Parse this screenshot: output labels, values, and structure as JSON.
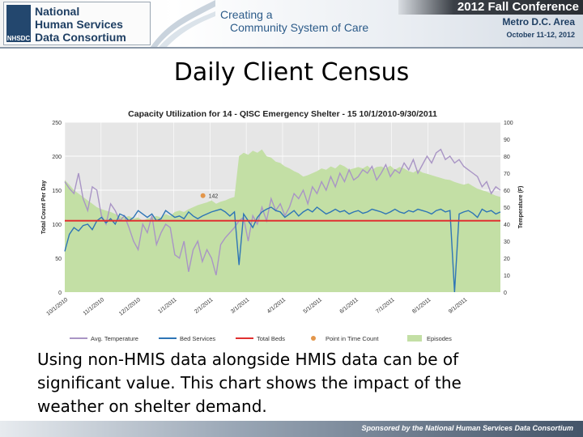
{
  "header": {
    "logo_lines": [
      "National",
      "Human Services",
      "Data Consortium"
    ],
    "logo_mark": "NHSDC",
    "tagline_lines": [
      "Creating a",
      "Community System of Care"
    ],
    "conference": "2012 Fall Conference",
    "location": "Metro D.C. Area",
    "dates": "October 11-12, 2012"
  },
  "slide_title": "Daily Client Census",
  "caption": "Using non-HMIS data alongside HMIS data can be of significant value.  This chart shows the impact of the weather on shelter demand.",
  "footer": "Sponsored by the National Human Services Data Consortium",
  "chart_data": {
    "type": "line",
    "title": "Capacity Utilization for 14 - QISC Emergency Shelter - 15 10/1/2010-9/30/2011",
    "ylabel": "Total Count Per Day",
    "y2label": "Temperature (F)",
    "ylim": [
      0,
      250
    ],
    "y2lim": [
      0,
      100
    ],
    "yticks": [
      "250",
      "200",
      "150",
      "100",
      "50",
      "0"
    ],
    "y2ticks": [
      "100",
      "90",
      "80",
      "70",
      "60",
      "50",
      "40",
      "30",
      "20",
      "10",
      "0"
    ],
    "xticks": [
      "10/1/2010",
      "11/1/2010",
      "12/1/2010",
      "1/1/2011",
      "2/1/2011",
      "3/1/2011",
      "4/1/2011",
      "5/1/2011",
      "6/1/2011",
      "7/1/2011",
      "8/1/2011",
      "9/1/2011"
    ],
    "grid": true,
    "legend_position": "bottom",
    "series": [
      {
        "name": "Avg. Temperature",
        "color": "#a995c5",
        "axis": "right",
        "values": [
          65,
          61,
          58,
          70,
          55,
          48,
          62,
          60,
          45,
          40,
          52,
          48,
          42,
          45,
          38,
          30,
          25,
          40,
          35,
          45,
          28,
          35,
          40,
          38,
          22,
          20,
          30,
          12,
          25,
          30,
          18,
          25,
          20,
          10,
          28,
          32,
          35,
          38,
          42,
          44,
          30,
          45,
          40,
          50,
          42,
          55,
          48,
          52,
          45,
          50,
          58,
          55,
          60,
          52,
          62,
          58,
          65,
          60,
          68,
          62,
          70,
          65,
          72,
          66,
          68,
          72,
          70,
          74,
          66,
          70,
          75,
          68,
          72,
          70,
          76,
          72,
          78,
          70,
          75,
          80,
          76,
          82,
          84,
          78,
          80,
          76,
          78,
          74,
          72,
          70,
          68,
          62,
          65,
          58,
          62,
          60
        ]
      },
      {
        "name": "Bed Services",
        "color": "#2e75b6",
        "axis": "left",
        "values": [
          60,
          85,
          95,
          90,
          98,
          100,
          92,
          105,
          110,
          102,
          108,
          100,
          115,
          112,
          105,
          110,
          120,
          115,
          110,
          115,
          105,
          108,
          120,
          115,
          110,
          112,
          108,
          118,
          112,
          108,
          112,
          115,
          118,
          120,
          122,
          118,
          112,
          118,
          40,
          115,
          105,
          95,
          110,
          118,
          122,
          125,
          120,
          118,
          110,
          115,
          120,
          112,
          118,
          122,
          118,
          125,
          120,
          115,
          118,
          122,
          118,
          120,
          115,
          118,
          120,
          116,
          118,
          122,
          120,
          118,
          115,
          118,
          122,
          118,
          116,
          120,
          118,
          122,
          120,
          118,
          115,
          120,
          122,
          118,
          120,
          0,
          115,
          118,
          120,
          116,
          110,
          122,
          118,
          120,
          115,
          118
        ]
      },
      {
        "name": "Total Beds",
        "color": "#e03030",
        "axis": "left",
        "values": [
          105,
          105
        ]
      },
      {
        "name": "Point in Time Count",
        "color": "#e3964a",
        "axis": "left",
        "point": {
          "x": "1/26/2011",
          "y": 142,
          "label": "142"
        }
      },
      {
        "name": "Episodes",
        "color": "#c3dfa5",
        "axis": "left",
        "kind": "area",
        "values": [
          165,
          158,
          150,
          145,
          140,
          135,
          130,
          125,
          122,
          120,
          118,
          115,
          112,
          110,
          112,
          108,
          110,
          105,
          108,
          110,
          112,
          110,
          115,
          112,
          118,
          120,
          118,
          122,
          125,
          128,
          130,
          132,
          135,
          130,
          133,
          135,
          138,
          140,
          200,
          205,
          202,
          208,
          205,
          210,
          200,
          198,
          192,
          190,
          185,
          182,
          178,
          175,
          170,
          172,
          175,
          178,
          182,
          180,
          185,
          182,
          188,
          185,
          180,
          182,
          184,
          182,
          186,
          180,
          184,
          185,
          182,
          186,
          180,
          184,
          182,
          178,
          176,
          180,
          176,
          174,
          172,
          170,
          168,
          166,
          165,
          162,
          160,
          158,
          160,
          156,
          152,
          150,
          148,
          145,
          142,
          140
        ]
      }
    ]
  }
}
